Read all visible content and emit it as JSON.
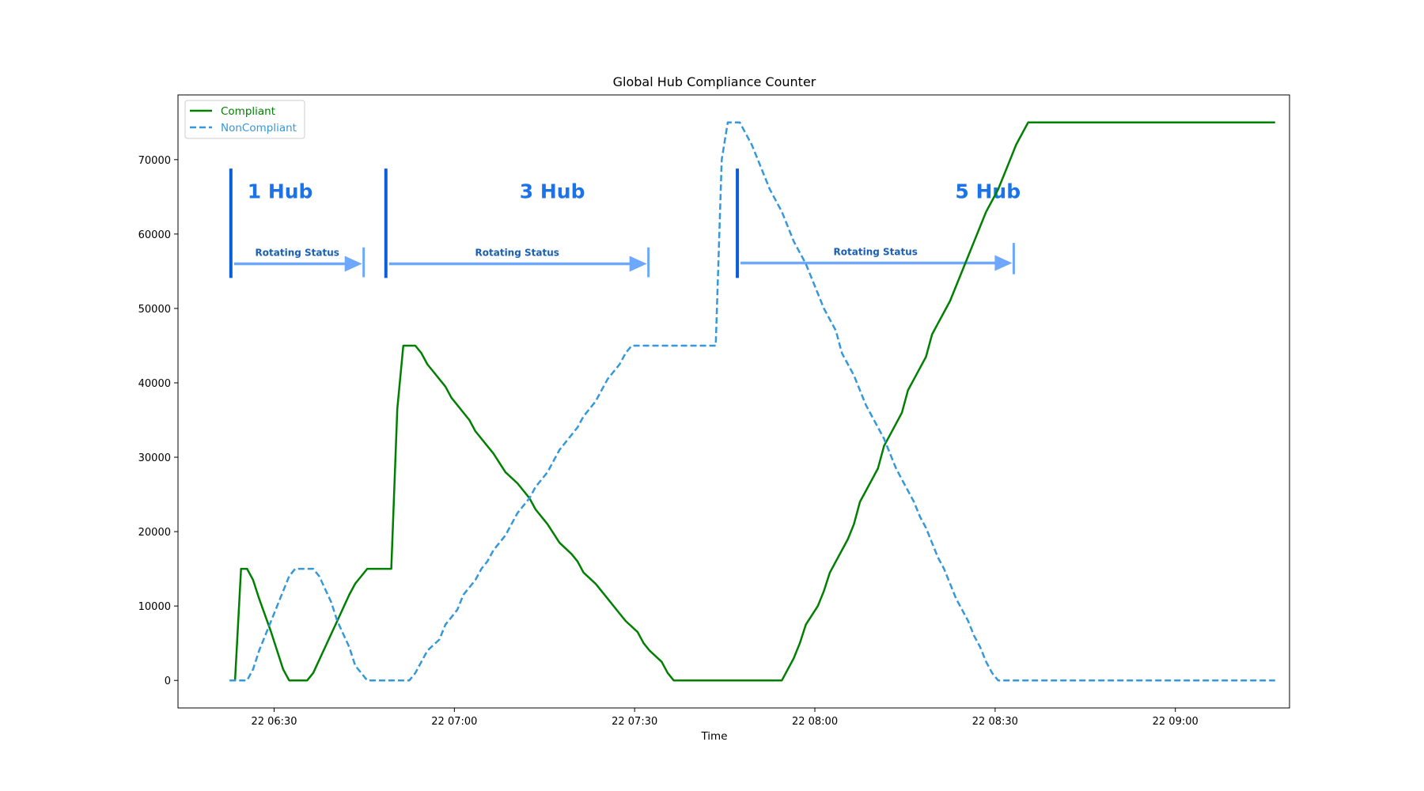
{
  "chart_data": {
    "type": "line",
    "title": "Global Hub Compliance Counter",
    "xlabel": "Time",
    "ylabel": "",
    "x_tick_labels": [
      "22 06:30",
      "22 07:00",
      "22 07:30",
      "22 08:00",
      "22 08:30",
      "22 09:00"
    ],
    "x_tick_minutes": [
      390,
      420,
      450,
      480,
      510,
      540
    ],
    "xlim_minutes": [
      374,
      559
    ],
    "ylim": [
      -3700,
      78700
    ],
    "y_ticks": [
      0,
      10000,
      20000,
      30000,
      40000,
      50000,
      60000,
      70000
    ],
    "legend": "top-left",
    "grid": false,
    "series": [
      {
        "name": "Compliant",
        "color": "#008000",
        "style": "solid",
        "points": [
          [
            382.6,
            0
          ],
          [
            383.5,
            0
          ],
          [
            384.5,
            15000
          ],
          [
            385.5,
            15000
          ],
          [
            386.5,
            13500
          ],
          [
            387.5,
            11000
          ],
          [
            389.5,
            6500
          ],
          [
            390.5,
            4000
          ],
          [
            391.5,
            1500
          ],
          [
            392.5,
            0
          ],
          [
            395.5,
            0
          ],
          [
            396.5,
            1000
          ],
          [
            398.5,
            4500
          ],
          [
            400.5,
            8000
          ],
          [
            402.5,
            11500
          ],
          [
            403.5,
            13000
          ],
          [
            405.5,
            15000
          ],
          [
            409.5,
            15000
          ],
          [
            410.5,
            36500
          ],
          [
            411.5,
            45000
          ],
          [
            413.5,
            45000
          ],
          [
            414.5,
            44000
          ],
          [
            415.5,
            42500
          ],
          [
            416.5,
            41500
          ],
          [
            418.5,
            39500
          ],
          [
            419.5,
            38000
          ],
          [
            422.5,
            35000
          ],
          [
            423.5,
            33500
          ],
          [
            426.5,
            30500
          ],
          [
            428.5,
            28000
          ],
          [
            430.5,
            26500
          ],
          [
            431.5,
            25500
          ],
          [
            432.5,
            24500
          ],
          [
            433.5,
            23000
          ],
          [
            435.5,
            21000
          ],
          [
            437.5,
            18500
          ],
          [
            439.5,
            17000
          ],
          [
            440.5,
            16000
          ],
          [
            441.5,
            14500
          ],
          [
            443.5,
            13000
          ],
          [
            444.5,
            12000
          ],
          [
            445.5,
            11000
          ],
          [
            447.5,
            9000
          ],
          [
            448.5,
            8000
          ],
          [
            450.5,
            6500
          ],
          [
            451.5,
            5000
          ],
          [
            452.5,
            4000
          ],
          [
            454.5,
            2500
          ],
          [
            455.5,
            1000
          ],
          [
            456.5,
            0
          ],
          [
            474.5,
            0
          ],
          [
            476.5,
            3000
          ],
          [
            477.5,
            5000
          ],
          [
            478.5,
            7500
          ],
          [
            480.5,
            10000
          ],
          [
            481.5,
            12000
          ],
          [
            482.5,
            14500
          ],
          [
            484.5,
            17500
          ],
          [
            485.5,
            19000
          ],
          [
            486.5,
            21000
          ],
          [
            487.5,
            24000
          ],
          [
            488.5,
            25500
          ],
          [
            489.5,
            27000
          ],
          [
            490.5,
            28500
          ],
          [
            491.5,
            31500
          ],
          [
            492.5,
            33000
          ],
          [
            493.5,
            34500
          ],
          [
            494.5,
            36000
          ],
          [
            495.5,
            39000
          ],
          [
            496.5,
            40500
          ],
          [
            497.5,
            42000
          ],
          [
            498.5,
            43500
          ],
          [
            499.5,
            46500
          ],
          [
            500.5,
            48000
          ],
          [
            501.5,
            49500
          ],
          [
            502.5,
            51000
          ],
          [
            504.5,
            55000
          ],
          [
            505.5,
            57000
          ],
          [
            506.5,
            59000
          ],
          [
            507.5,
            61000
          ],
          [
            508.5,
            63000
          ],
          [
            509.5,
            64500
          ],
          [
            510.5,
            66000
          ],
          [
            511.5,
            68000
          ],
          [
            512.5,
            70000
          ],
          [
            513.5,
            72000
          ],
          [
            514.5,
            73500
          ],
          [
            515.5,
            75000
          ],
          [
            556.6,
            75000
          ]
        ]
      },
      {
        "name": "NonCompliant",
        "color": "#3498db",
        "style": "dashed",
        "points": [
          [
            382.6,
            0
          ],
          [
            385.5,
            0
          ],
          [
            386.5,
            1500
          ],
          [
            387.5,
            4000
          ],
          [
            389.5,
            8000
          ],
          [
            390.5,
            10000
          ],
          [
            391.5,
            12000
          ],
          [
            392.5,
            14000
          ],
          [
            393.5,
            15000
          ],
          [
            396.5,
            15000
          ],
          [
            397.5,
            14000
          ],
          [
            399.5,
            10500
          ],
          [
            400.5,
            8000
          ],
          [
            402.5,
            4500
          ],
          [
            403.5,
            2000
          ],
          [
            404.5,
            1000
          ],
          [
            405.5,
            0
          ],
          [
            412.5,
            0
          ],
          [
            413.5,
            1000
          ],
          [
            414.5,
            2500
          ],
          [
            415.5,
            4000
          ],
          [
            417.5,
            5500
          ],
          [
            418.5,
            7500
          ],
          [
            419.5,
            8500
          ],
          [
            420.5,
            9500
          ],
          [
            421.5,
            11500
          ],
          [
            422.5,
            12500
          ],
          [
            423.5,
            13500
          ],
          [
            424.5,
            15000
          ],
          [
            425.5,
            16000
          ],
          [
            426.5,
            17500
          ],
          [
            427.5,
            18500
          ],
          [
            428.5,
            19500
          ],
          [
            429.5,
            21000
          ],
          [
            430.5,
            22500
          ],
          [
            431.5,
            23500
          ],
          [
            432.5,
            24500
          ],
          [
            433.5,
            26000
          ],
          [
            434.5,
            27000
          ],
          [
            435.5,
            28000
          ],
          [
            436.5,
            29500
          ],
          [
            437.5,
            31000
          ],
          [
            438.5,
            32000
          ],
          [
            439.5,
            33000
          ],
          [
            440.5,
            34000
          ],
          [
            441.5,
            35500
          ],
          [
            442.5,
            36500
          ],
          [
            443.5,
            37500
          ],
          [
            444.5,
            39000
          ],
          [
            445.5,
            40500
          ],
          [
            446.5,
            41500
          ],
          [
            447.5,
            42500
          ],
          [
            448.5,
            44000
          ],
          [
            449.5,
            45000
          ],
          [
            463.5,
            45000
          ],
          [
            464.5,
            70000
          ],
          [
            465.5,
            75000
          ],
          [
            467.5,
            75000
          ],
          [
            468.5,
            73500
          ],
          [
            469.5,
            72000
          ],
          [
            470.5,
            70000
          ],
          [
            471.5,
            68000
          ],
          [
            472.5,
            66000
          ],
          [
            474.5,
            63000
          ],
          [
            475.5,
            61000
          ],
          [
            476.5,
            59000
          ],
          [
            478.5,
            56000
          ],
          [
            479.5,
            54000
          ],
          [
            480.5,
            52000
          ],
          [
            481.5,
            50000
          ],
          [
            483.5,
            47000
          ],
          [
            484.5,
            44000
          ],
          [
            485.5,
            42500
          ],
          [
            486.5,
            41000
          ],
          [
            487.5,
            39000
          ],
          [
            488.5,
            37000
          ],
          [
            489.5,
            35500
          ],
          [
            490.5,
            34000
          ],
          [
            491.5,
            32500
          ],
          [
            492.5,
            30500
          ],
          [
            493.5,
            28500
          ],
          [
            494.5,
            27000
          ],
          [
            495.5,
            25500
          ],
          [
            496.5,
            24000
          ],
          [
            497.5,
            22000
          ],
          [
            498.5,
            20500
          ],
          [
            499.5,
            18500
          ],
          [
            500.5,
            16500
          ],
          [
            501.5,
            15000
          ],
          [
            502.5,
            13000
          ],
          [
            503.5,
            11000
          ],
          [
            504.5,
            9500
          ],
          [
            505.5,
            8000
          ],
          [
            506.5,
            6000
          ],
          [
            507.5,
            4500
          ],
          [
            508.5,
            2500
          ],
          [
            509.5,
            1000
          ],
          [
            510.5,
            0
          ],
          [
            556.6,
            0
          ]
        ]
      }
    ],
    "annotations": {
      "hub_labels": [
        {
          "text": "1 Hub",
          "x": 391.0,
          "y": 64800
        },
        {
          "text": "3 Hub",
          "x": 436.3,
          "y": 64800
        },
        {
          "text": "5 Hub",
          "x": 508.8,
          "y": 64800
        }
      ],
      "phases": [
        {
          "label": "Rotating Status",
          "start": 382.8,
          "end": 404.9,
          "bar_top": 68800,
          "bar_bottom": 54100,
          "arrow_y": 56000,
          "end_top": 58200,
          "end_bottom": 54200
        },
        {
          "label": "Rotating Status",
          "start": 408.6,
          "end": 452.3,
          "bar_top": 68800,
          "bar_bottom": 54100,
          "arrow_y": 56000,
          "end_top": 58200,
          "end_bottom": 54200
        },
        {
          "label": "Rotating Status",
          "start": 467.1,
          "end": 513.1,
          "bar_top": 68800,
          "bar_bottom": 54100,
          "arrow_y": 56100,
          "end_top": 58800,
          "end_bottom": 54600
        }
      ],
      "bar_color": "#0b5ed7",
      "arrow_color": "#6ea8fe",
      "label_color": "#1a73e8"
    }
  }
}
